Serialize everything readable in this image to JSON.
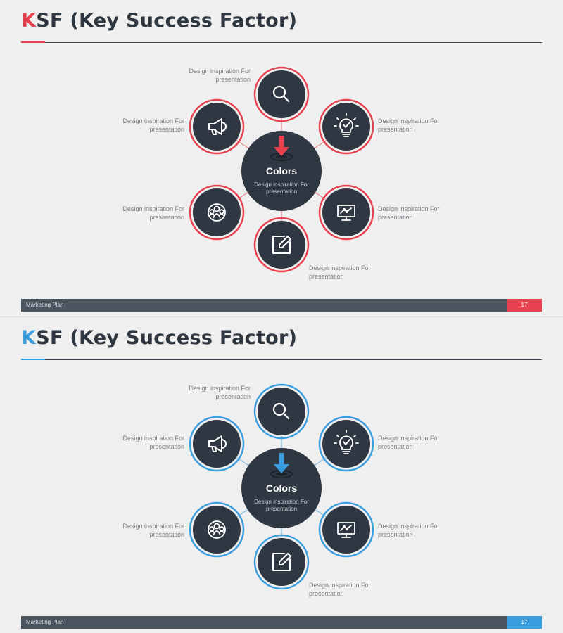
{
  "slides": [
    {
      "title_initial": "K",
      "title_rest": "SF (Key Success Factor)",
      "accent_color": "#e8404f",
      "center": {
        "title": "Colors",
        "desc": "Design inspiration For presentation",
        "icon": "arrow-down-target-icon"
      },
      "nodes": [
        {
          "icon": "magnifier-icon",
          "label": "Design inspiration For presentation"
        },
        {
          "icon": "megaphone-icon",
          "label": "Design inspiration For presentation"
        },
        {
          "icon": "lightbulb-icon",
          "label": "Design inspiration For presentation"
        },
        {
          "icon": "team-icon",
          "label": "Design inspiration For presentation"
        },
        {
          "icon": "monitor-chart-icon",
          "label": "Design inspiration For presentation"
        },
        {
          "icon": "edit-note-icon",
          "label": "Design inspiration For presentation"
        }
      ],
      "footer": {
        "label": "Marketing Plan",
        "page": "17"
      }
    },
    {
      "title_initial": "K",
      "title_rest": "SF (Key Success Factor)",
      "accent_color": "#3a9ede",
      "center": {
        "title": "Colors",
        "desc": "Design inspiration For presentation",
        "icon": "arrow-down-target-icon"
      },
      "nodes": [
        {
          "icon": "magnifier-icon",
          "label": "Design inspiration For presentation"
        },
        {
          "icon": "megaphone-icon",
          "label": "Design inspiration For presentation"
        },
        {
          "icon": "lightbulb-icon",
          "label": "Design inspiration For presentation"
        },
        {
          "icon": "team-icon",
          "label": "Design inspiration For presentation"
        },
        {
          "icon": "monitor-chart-icon",
          "label": "Design inspiration For presentation"
        },
        {
          "icon": "edit-note-icon",
          "label": "Design inspiration For presentation"
        }
      ],
      "footer": {
        "label": "Marketing Plan",
        "page": "17"
      }
    }
  ]
}
